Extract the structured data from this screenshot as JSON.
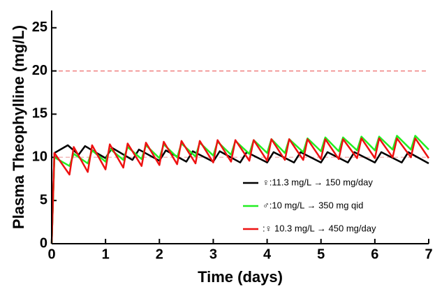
{
  "chart_data": {
    "type": "line",
    "x_label": "Time (days)",
    "y_label": "Plasma Theophylline (mg/L)",
    "xlim": [
      0,
      7
    ],
    "xticks": [
      0,
      1,
      2,
      3,
      4,
      5,
      6,
      7
    ],
    "ylim": [
      0,
      27
    ],
    "yticks": [
      0,
      5,
      10,
      15,
      20,
      25
    ],
    "reference_lines": [
      {
        "value": 20,
        "color": "#f08080"
      },
      {
        "value": 10,
        "color": "#f2b8b8"
      }
    ],
    "legend": "lower right",
    "series": [
      {
        "name": "♀:11.3 mg/L → 150 mg/day",
        "color": "#000000",
        "x": [
          0,
          0.05,
          0.3,
          0.5,
          0.62,
          1.0,
          1.12,
          1.5,
          1.62,
          2.0,
          2.12,
          2.5,
          2.62,
          3.0,
          3.12,
          3.5,
          3.62,
          4.0,
          4.12,
          4.5,
          4.62,
          5.0,
          5.12,
          5.5,
          5.62,
          6.0,
          6.12,
          6.5,
          6.62,
          7.0
        ],
        "values": [
          0,
          10.5,
          11.4,
          10.3,
          11.3,
          9.9,
          11.1,
          9.7,
          10.9,
          9.6,
          10.8,
          9.5,
          10.7,
          9.5,
          10.7,
          9.4,
          10.6,
          9.4,
          10.6,
          9.4,
          10.6,
          9.4,
          10.6,
          9.4,
          10.6,
          9.4,
          10.6,
          9.4,
          10.6,
          9.3
        ]
      },
      {
        "name": "♂:10 mg/L → 350 mg qid",
        "color": "#22ee22",
        "x": [
          0,
          0.05,
          0.33,
          0.41,
          0.67,
          0.75,
          1.0,
          1.08,
          1.33,
          1.41,
          1.67,
          1.75,
          2.0,
          2.08,
          2.33,
          2.41,
          2.67,
          2.75,
          3.0,
          3.08,
          3.33,
          3.41,
          3.67,
          3.75,
          4.0,
          4.08,
          4.33,
          4.41,
          4.67,
          4.75,
          5.0,
          5.08,
          5.33,
          5.41,
          5.67,
          5.75,
          6.0,
          6.08,
          6.33,
          6.41,
          6.67,
          6.75,
          7.0
        ],
        "values": [
          0,
          10.0,
          9.0,
          10.4,
          9.3,
          10.8,
          9.5,
          11.0,
          9.7,
          11.2,
          9.8,
          11.4,
          9.9,
          11.5,
          10.0,
          11.6,
          10.1,
          11.7,
          10.2,
          11.8,
          10.3,
          11.9,
          10.4,
          12.0,
          10.5,
          12.1,
          10.5,
          12.1,
          10.6,
          12.2,
          10.7,
          12.3,
          10.7,
          12.3,
          10.8,
          12.4,
          10.8,
          12.4,
          10.9,
          12.5,
          10.9,
          12.5,
          10.9
        ]
      },
      {
        "name": ":♀ 10.3 mg/L → 450 mg/day",
        "color": "#ee1111",
        "x": [
          0,
          0.05,
          0.33,
          0.41,
          0.67,
          0.75,
          1.0,
          1.08,
          1.33,
          1.41,
          1.67,
          1.75,
          2.0,
          2.08,
          2.33,
          2.41,
          2.67,
          2.75,
          3.0,
          3.08,
          3.33,
          3.41,
          3.67,
          3.75,
          4.0,
          4.08,
          4.33,
          4.41,
          4.67,
          4.75,
          5.0,
          5.08,
          5.33,
          5.41,
          5.67,
          5.75,
          6.0,
          6.08,
          6.33,
          6.41,
          6.67,
          6.75,
          7.0
        ],
        "values": [
          0,
          10.5,
          8.0,
          11.2,
          8.3,
          11.4,
          8.6,
          11.5,
          8.8,
          11.6,
          9.0,
          11.7,
          9.1,
          11.8,
          9.2,
          11.9,
          9.3,
          11.9,
          9.4,
          12.0,
          9.5,
          12.0,
          9.6,
          12.0,
          9.6,
          12.1,
          9.7,
          12.1,
          9.7,
          12.1,
          9.8,
          12.1,
          9.8,
          12.1,
          9.9,
          12.2,
          9.9,
          12.2,
          10.0,
          12.2,
          10.0,
          12.2,
          9.9
        ]
      }
    ]
  }
}
